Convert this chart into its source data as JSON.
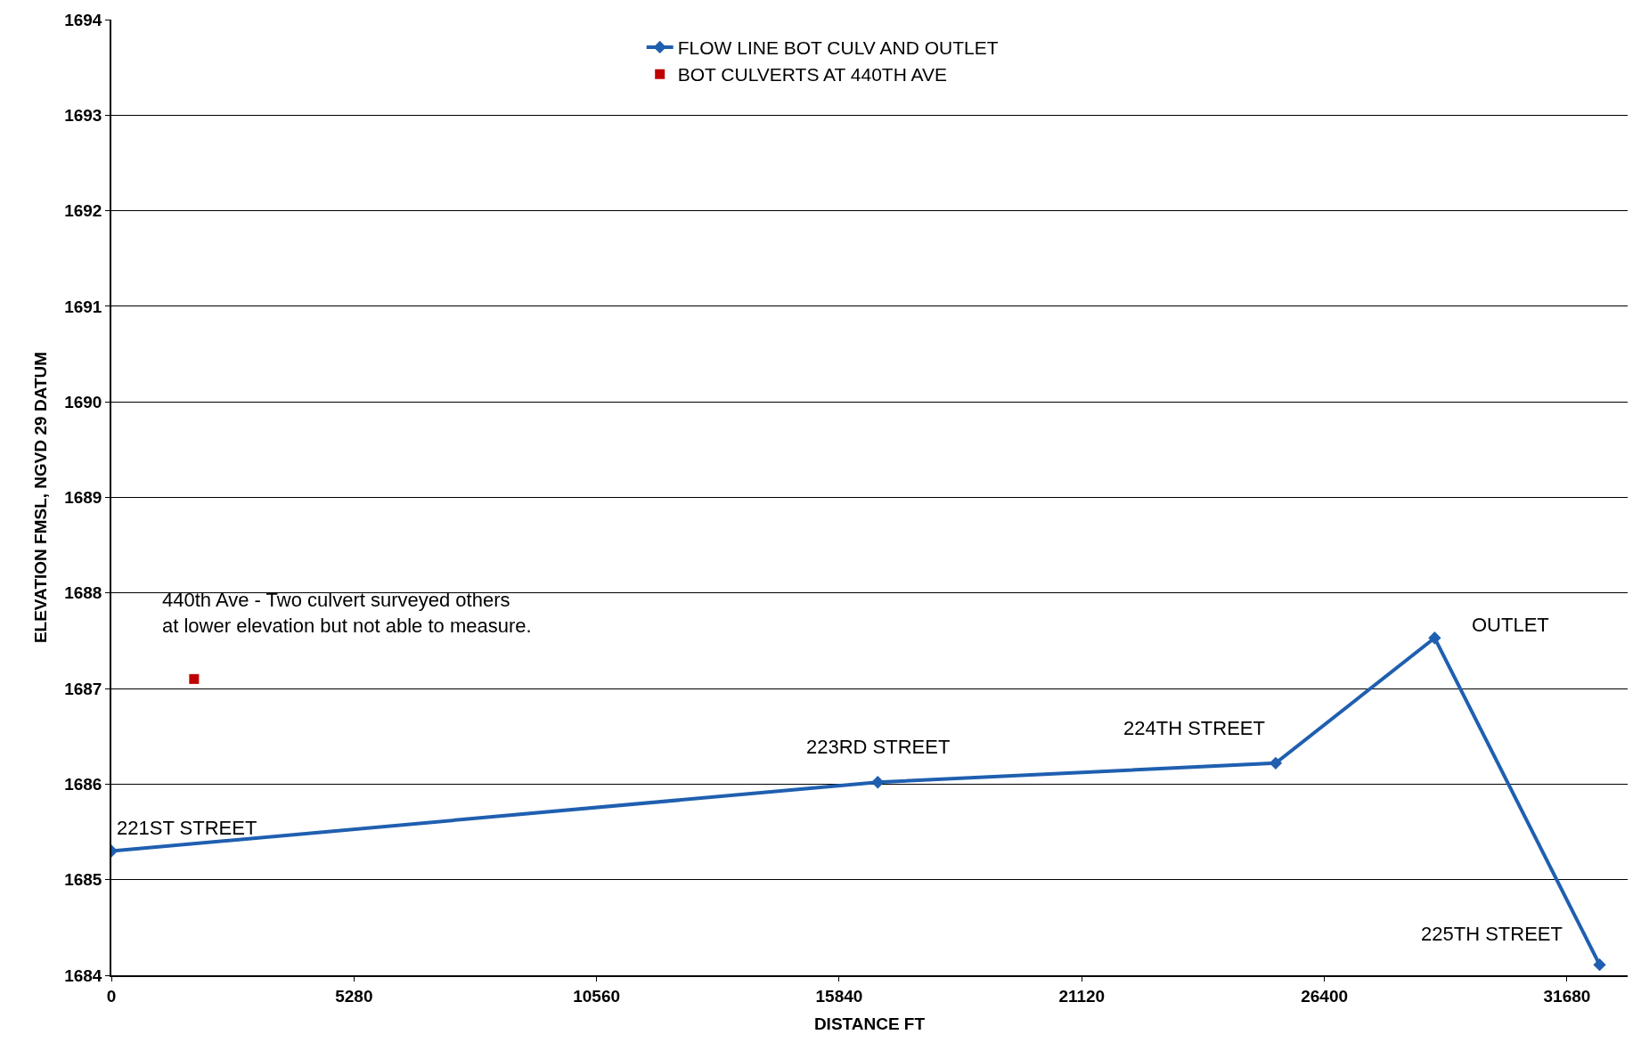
{
  "chart_data": {
    "type": "line",
    "xlabel": "DISTANCE FT",
    "ylabel": "ELEVATION FMSL, NGVD 29 DATUM",
    "xlim": [
      0,
      33000
    ],
    "xticks": [
      0,
      5280,
      10560,
      15840,
      21120,
      26400,
      31680
    ],
    "ylim": [
      1684,
      1694
    ],
    "yticks": [
      1684,
      1685,
      1686,
      1687,
      1688,
      1689,
      1690,
      1691,
      1692,
      1693,
      1694
    ],
    "grid": "y",
    "legend": "top",
    "marker": "diamond",
    "series": [
      {
        "name": "FLOW LINE BOT CULV AND OUTLET",
        "color": "#1f5fb0",
        "x": [
          0,
          16680,
          25340,
          28800,
          32390
        ],
        "values": [
          1685.3,
          1686.02,
          1686.22,
          1687.53,
          1684.11
        ]
      },
      {
        "name": "BOT CULVERTS AT 440TH AVE",
        "color": "#c00000",
        "type": "scatter",
        "marker": "square",
        "x": [
          1800
        ],
        "values": [
          1687.1
        ]
      }
    ],
    "annotations": [
      {
        "text": "221ST STREET",
        "x": 0,
        "y": 1685.3
      },
      {
        "text": "223RD STREET",
        "x": 16680,
        "y": 1686.02
      },
      {
        "text": "224TH STREET",
        "x": 25340,
        "y": 1686.22
      },
      {
        "text": "OUTLET",
        "x": 28800,
        "y": 1687.53
      },
      {
        "text": "225TH STREET",
        "x": 32390,
        "y": 1684.11
      },
      {
        "text": "440th Ave - Two culvert surveyed others\nat lower elevation but not able to measure.",
        "x": 1800,
        "y": 1687.1
      }
    ]
  }
}
